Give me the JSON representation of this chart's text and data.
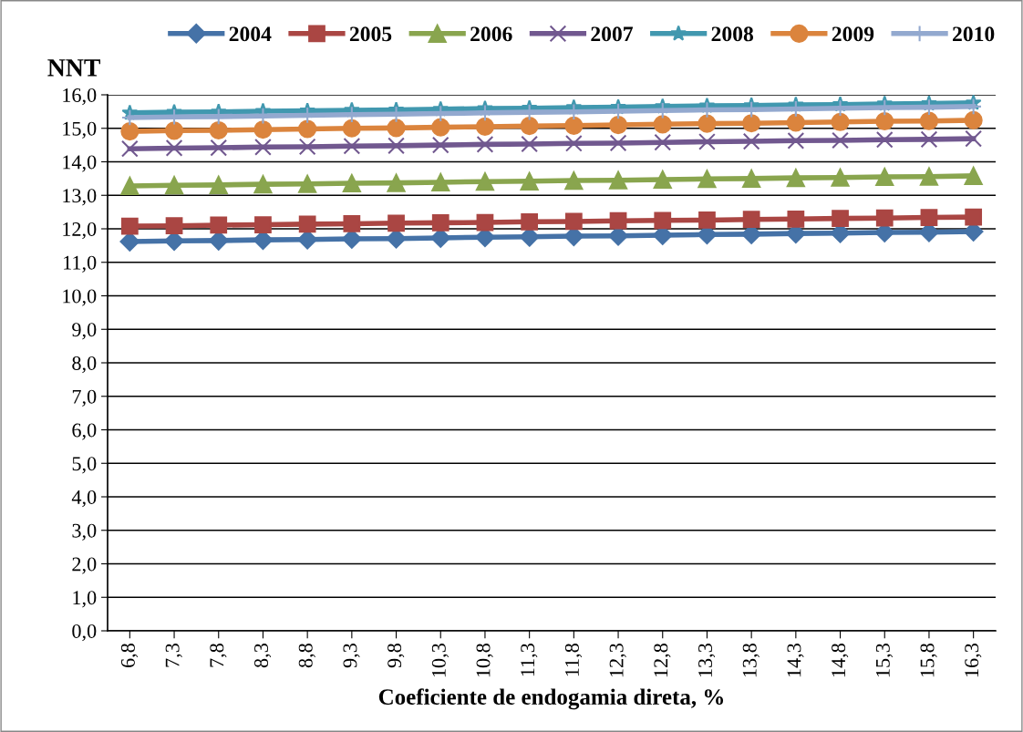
{
  "chart_data": {
    "type": "line",
    "ylabel": "NNT",
    "xlabel": "Coeficiente de endogamia direta, %",
    "categories": [
      "6,8",
      "7,3",
      "7,8",
      "8,3",
      "8,8",
      "9,3",
      "9,8",
      "10,3",
      "10,8",
      "11,3",
      "11,8",
      "12,3",
      "12,8",
      "13,3",
      "13,8",
      "14,3",
      "14,8",
      "15,3",
      "15,8",
      "16,3"
    ],
    "series": [
      {
        "name": "2004",
        "color": "#4572a7",
        "marker": "diamond",
        "values": [
          11.62,
          11.64,
          11.65,
          11.67,
          11.68,
          11.7,
          11.71,
          11.73,
          11.75,
          11.76,
          11.78,
          11.79,
          11.81,
          11.83,
          11.84,
          11.86,
          11.87,
          11.89,
          11.9,
          11.92
        ]
      },
      {
        "name": "2005",
        "color": "#aa4643",
        "marker": "square",
        "values": [
          12.08,
          12.09,
          12.11,
          12.12,
          12.14,
          12.15,
          12.17,
          12.18,
          12.19,
          12.21,
          12.22,
          12.24,
          12.25,
          12.26,
          12.28,
          12.29,
          12.31,
          12.32,
          12.34,
          12.35
        ]
      },
      {
        "name": "2006",
        "color": "#89a54e",
        "marker": "triangle",
        "values": [
          13.28,
          13.3,
          13.31,
          13.33,
          13.34,
          13.36,
          13.37,
          13.39,
          13.41,
          13.42,
          13.44,
          13.45,
          13.47,
          13.49,
          13.5,
          13.52,
          13.53,
          13.55,
          13.56,
          13.58
        ]
      },
      {
        "name": "2007",
        "color": "#71588f",
        "marker": "cross",
        "values": [
          14.39,
          14.41,
          14.42,
          14.44,
          14.45,
          14.47,
          14.48,
          14.5,
          14.52,
          14.53,
          14.55,
          14.56,
          14.58,
          14.6,
          14.61,
          14.63,
          14.64,
          14.66,
          14.67,
          14.69
        ]
      },
      {
        "name": "2008",
        "color": "#4198af",
        "marker": "star",
        "values": [
          15.46,
          15.48,
          15.49,
          15.51,
          15.52,
          15.54,
          15.55,
          15.57,
          15.59,
          15.6,
          15.62,
          15.63,
          15.65,
          15.67,
          15.68,
          15.7,
          15.71,
          15.73,
          15.74,
          15.76
        ]
      },
      {
        "name": "2009",
        "color": "#db843d",
        "marker": "circle",
        "values": [
          14.91,
          14.93,
          14.94,
          14.96,
          14.98,
          15.0,
          15.01,
          15.03,
          15.05,
          15.07,
          15.08,
          15.1,
          15.12,
          15.14,
          15.15,
          15.17,
          15.19,
          15.21,
          15.22,
          15.24
        ]
      },
      {
        "name": "2010",
        "color": "#93a9cf",
        "marker": "plus",
        "values": [
          15.32,
          15.34,
          15.35,
          15.37,
          15.39,
          15.41,
          15.42,
          15.44,
          15.46,
          15.48,
          15.49,
          15.51,
          15.53,
          15.55,
          15.56,
          15.58,
          15.6,
          15.62,
          15.63,
          15.65
        ]
      }
    ],
    "ylim": [
      0,
      16
    ],
    "yticks": [
      {
        "value": 0,
        "label": "0,0"
      },
      {
        "value": 1,
        "label": "1,0"
      },
      {
        "value": 2,
        "label": "2,0"
      },
      {
        "value": 3,
        "label": "3,0"
      },
      {
        "value": 4,
        "label": "4,0"
      },
      {
        "value": 5,
        "label": "5,0"
      },
      {
        "value": 6,
        "label": "6,0"
      },
      {
        "value": 7,
        "label": "7,0"
      },
      {
        "value": 8,
        "label": "8,0"
      },
      {
        "value": 9,
        "label": "9,0"
      },
      {
        "value": 10,
        "label": "10,0"
      },
      {
        "value": 11,
        "label": "11,0"
      },
      {
        "value": 12,
        "label": "12,0"
      },
      {
        "value": 13,
        "label": "13,0"
      },
      {
        "value": 14,
        "label": "14,0"
      },
      {
        "value": 15,
        "label": "15,0"
      },
      {
        "value": 16,
        "label": "16,0"
      }
    ],
    "grid": "y",
    "legend": "top",
    "line_style": "solid"
  }
}
